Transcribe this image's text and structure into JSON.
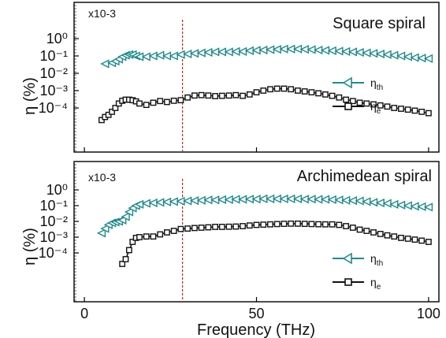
{
  "chart_data": [
    {
      "type": "line",
      "title": "Square spiral",
      "scale_note": "x10-3",
      "xlabel": "Frequency (THz)",
      "ylabel": "η (%)",
      "x_ticks": [
        0,
        50,
        100
      ],
      "xlim": [
        -3,
        103
      ],
      "y_scale": "log",
      "y_tick_labels": [
        "10⁰",
        "10⁻¹",
        "10⁻²",
        "10⁻³",
        "10⁻⁴"
      ],
      "ylim": [
        2e-05,
        10
      ],
      "marker_line_x": 28.5,
      "legend_position": "right",
      "colors": {
        "eta_th": "#1f8a8a",
        "eta_e": "#111111",
        "marker_line": "#d62020"
      },
      "series": [
        {
          "name": "ηth",
          "legend_main": "η",
          "legend_sub": "th",
          "marker": "left-triangle",
          "x": [
            6,
            8,
            9,
            10,
            11,
            12,
            13,
            14,
            15,
            16,
            18,
            20,
            22,
            24,
            26,
            28,
            30,
            32,
            34,
            36,
            38,
            40,
            42,
            44,
            46,
            48,
            50,
            52,
            54,
            56,
            58,
            60,
            62,
            64,
            66,
            68,
            70,
            72,
            74,
            76,
            78,
            80,
            82,
            84,
            86,
            88,
            90,
            92,
            94,
            96,
            98,
            100
          ],
          "y": [
            0.035,
            0.04,
            0.05,
            0.065,
            0.09,
            0.11,
            0.12,
            0.12,
            0.1,
            0.09,
            0.09,
            0.1,
            0.11,
            0.1,
            0.1,
            0.12,
            0.13,
            0.14,
            0.15,
            0.16,
            0.17,
            0.17,
            0.17,
            0.18,
            0.18,
            0.2,
            0.21,
            0.22,
            0.23,
            0.24,
            0.25,
            0.25,
            0.25,
            0.24,
            0.23,
            0.22,
            0.21,
            0.2,
            0.19,
            0.18,
            0.17,
            0.16,
            0.15,
            0.14,
            0.13,
            0.12,
            0.11,
            0.1,
            0.09,
            0.08,
            0.075,
            0.07
          ]
        },
        {
          "name": "ηe",
          "legend_main": "η",
          "legend_sub": "e",
          "marker": "square",
          "x": [
            5,
            6,
            7,
            8,
            9,
            10,
            11,
            12,
            13,
            14,
            15,
            16,
            18,
            20,
            22,
            24,
            26,
            28,
            30,
            32,
            34,
            36,
            38,
            40,
            42,
            44,
            46,
            48,
            50,
            52,
            54,
            56,
            58,
            60,
            62,
            64,
            66,
            68,
            70,
            72,
            74,
            76,
            78,
            80,
            82,
            84,
            86,
            88,
            90,
            92,
            94,
            96,
            98,
            100
          ],
          "y": [
            2e-05,
            3e-05,
            4e-05,
            6e-05,
            0.0001,
            0.00018,
            0.00026,
            0.0003,
            0.0003,
            0.00028,
            0.00024,
            0.00018,
            0.00015,
            0.0002,
            0.00025,
            0.00022,
            0.00026,
            0.00028,
            0.0004,
            0.00052,
            0.00055,
            0.00052,
            0.00048,
            0.0005,
            0.00052,
            0.00055,
            0.0005,
            0.0006,
            0.0008,
            0.001,
            0.0012,
            0.0013,
            0.0013,
            0.0012,
            0.001,
            0.0009,
            0.0008,
            0.0007,
            0.0006,
            0.0005,
            0.0004,
            0.0003,
            0.00025,
            0.0002,
            0.00018,
            0.00016,
            0.00014,
            0.00012,
            0.0001,
            9e-05,
            8e-05,
            7e-05,
            6e-05,
            5e-05
          ]
        }
      ]
    },
    {
      "type": "line",
      "title": "Archimedean spiral",
      "scale_note": "x10-3",
      "xlabel": "Frequency (THz)",
      "ylabel": "η (%)",
      "x_ticks": [
        0,
        50,
        100
      ],
      "xlim": [
        -3,
        103
      ],
      "y_scale": "log",
      "y_tick_labels": [
        "10⁰",
        "10⁻¹",
        "10⁻²",
        "10⁻³",
        "10⁻⁴"
      ],
      "ylim": [
        2e-05,
        10
      ],
      "marker_line_x": 28.5,
      "legend_position": "bottom-right",
      "colors": {
        "eta_th": "#1f8a8a",
        "eta_e": "#111111",
        "marker_line": "#d62020"
      },
      "series": [
        {
          "name": "ηth",
          "legend_main": "η",
          "legend_sub": "th",
          "marker": "left-triangle",
          "x": [
            5,
            6,
            7,
            8,
            9,
            10,
            11,
            12,
            13,
            14,
            15,
            16,
            18,
            20,
            22,
            24,
            26,
            28,
            30,
            32,
            34,
            36,
            38,
            40,
            42,
            44,
            46,
            48,
            50,
            52,
            54,
            56,
            58,
            60,
            62,
            64,
            66,
            68,
            70,
            72,
            74,
            76,
            78,
            80,
            82,
            84,
            86,
            88,
            90,
            92,
            94,
            96,
            98,
            100
          ],
          "y": [
            0.0018,
            0.0035,
            0.006,
            0.008,
            0.009,
            0.01,
            0.012,
            0.02,
            0.04,
            0.07,
            0.1,
            0.12,
            0.14,
            0.15,
            0.16,
            0.17,
            0.18,
            0.19,
            0.2,
            0.21,
            0.22,
            0.23,
            0.23,
            0.24,
            0.24,
            0.25,
            0.25,
            0.26,
            0.26,
            0.27,
            0.27,
            0.27,
            0.27,
            0.27,
            0.27,
            0.26,
            0.26,
            0.25,
            0.25,
            0.24,
            0.23,
            0.22,
            0.21,
            0.2,
            0.18,
            0.16,
            0.15,
            0.14,
            0.12,
            0.11,
            0.1,
            0.09,
            0.085,
            0.08
          ]
        },
        {
          "name": "ηe",
          "legend_main": "η",
          "legend_sub": "e",
          "marker": "square",
          "x": [
            11,
            12,
            13,
            14,
            15,
            16,
            18,
            20,
            22,
            24,
            26,
            28,
            30,
            32,
            34,
            36,
            38,
            40,
            42,
            44,
            46,
            48,
            50,
            52,
            54,
            56,
            58,
            60,
            62,
            64,
            66,
            68,
            70,
            72,
            74,
            76,
            78,
            80,
            82,
            84,
            86,
            88,
            90,
            92,
            94,
            96,
            98,
            100
          ],
          "y": [
            2e-05,
            4e-05,
            0.00015,
            0.0005,
            0.0009,
            0.001,
            0.0011,
            0.0011,
            0.0015,
            0.002,
            0.0025,
            0.0033,
            0.0035,
            0.0038,
            0.004,
            0.0042,
            0.0045,
            0.0045,
            0.0046,
            0.0047,
            0.005,
            0.0055,
            0.006,
            0.0062,
            0.0065,
            0.0068,
            0.007,
            0.0072,
            0.0072,
            0.007,
            0.0068,
            0.0066,
            0.0065,
            0.0065,
            0.006,
            0.005,
            0.004,
            0.003,
            0.0025,
            0.002,
            0.0016,
            0.0013,
            0.0011,
            0.0009,
            0.0008,
            0.0007,
            0.0006,
            0.0005
          ]
        }
      ]
    }
  ]
}
